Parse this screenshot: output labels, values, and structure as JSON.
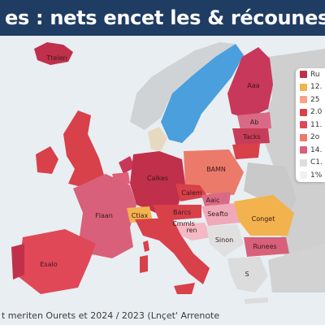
{
  "title": "es : nets encet les & récounes",
  "footer": "t meriten Ourets et 2024 / 2023 (Lnçet' Arrenote",
  "colors": {
    "sea": "#e9eef2",
    "title_bg": "#1f3c63",
    "dark_red": "#c0304a",
    "red": "#d8404a",
    "magenta": "#c83c6a",
    "pink": "#e0607a",
    "salmon": "#ec7a6a",
    "orange": "#f2b24e",
    "blue": "#4a9fdc",
    "grey": "#d7d7d7",
    "beige": "#e7d9bf",
    "non_eu": "#c9c9c9"
  },
  "legend": [
    {
      "label": "Ru",
      "color": "#c0304a"
    },
    {
      "label": "12.",
      "color": "#f2b24e"
    },
    {
      "label": "25",
      "color": "#f4a38a"
    },
    {
      "label": "2.0",
      "color": "#d8404a"
    },
    {
      "label": "11.",
      "color": "#e04858"
    },
    {
      "label": "2o",
      "color": "#ec7a6a"
    },
    {
      "label": "14.",
      "color": "#d8607a"
    },
    {
      "label": "C1.",
      "color": "#dedede"
    },
    {
      "label": "1%",
      "color": "#f1f1f1"
    }
  ],
  "country_labels": {
    "finland": "Aaa",
    "estonia": "Ab",
    "latvia": "Tacks",
    "poland": "BAMN",
    "germany": "Calkes",
    "czechia": "Calem",
    "france": "Flaan",
    "spain": "Esalo",
    "austria": "Barcs",
    "switzerland": "Ctiax",
    "hungary": "Seafto",
    "romania": "Conget",
    "serbia": "Sinon",
    "bulgaria": "Runees",
    "iceland": "Ttelen",
    "slovakia": "Aaic",
    "croatia": "ren",
    "italy": "Cmmls",
    "greece": "S"
  }
}
